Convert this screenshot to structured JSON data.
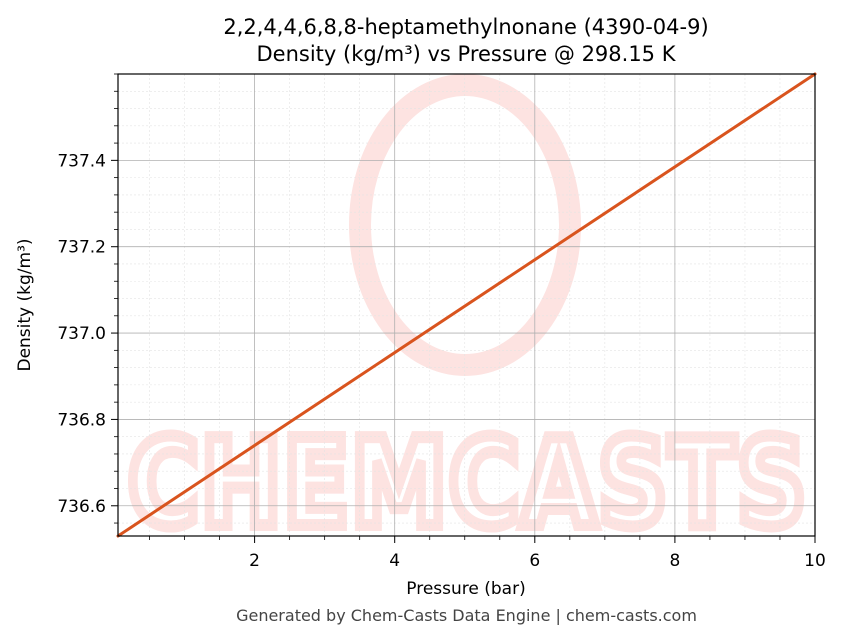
{
  "chart_data": {
    "type": "line",
    "title_line1": "2,2,4,4,6,8,8-heptamethylnonane (4390-04-9)",
    "title_line2": "Density (kg/m³) vs Pressure @ 298.15 K",
    "xlabel": "Pressure (bar)",
    "ylabel": "Density (kg/m³)",
    "xlim": [
      0.05,
      10
    ],
    "ylim": [
      736.53,
      737.6
    ],
    "x_ticks": [
      2,
      4,
      6,
      8,
      10
    ],
    "x_tick_labels": [
      "2",
      "4",
      "6",
      "8",
      "10"
    ],
    "y_ticks": [
      736.6,
      736.8,
      737.0,
      737.2,
      737.4
    ],
    "y_tick_labels": [
      "736.6",
      "736.8",
      "737.0",
      "737.2",
      "737.4"
    ],
    "grid": true,
    "series": [
      {
        "color": "#d9541e",
        "x": [
          0.05,
          10
        ],
        "y": [
          736.53,
          737.6
        ]
      }
    ]
  },
  "watermark": {
    "text": "CHEMCASTS",
    "color": "#fde3e1"
  },
  "footer": "Generated by Chem-Casts Data Engine | chem-casts.com"
}
